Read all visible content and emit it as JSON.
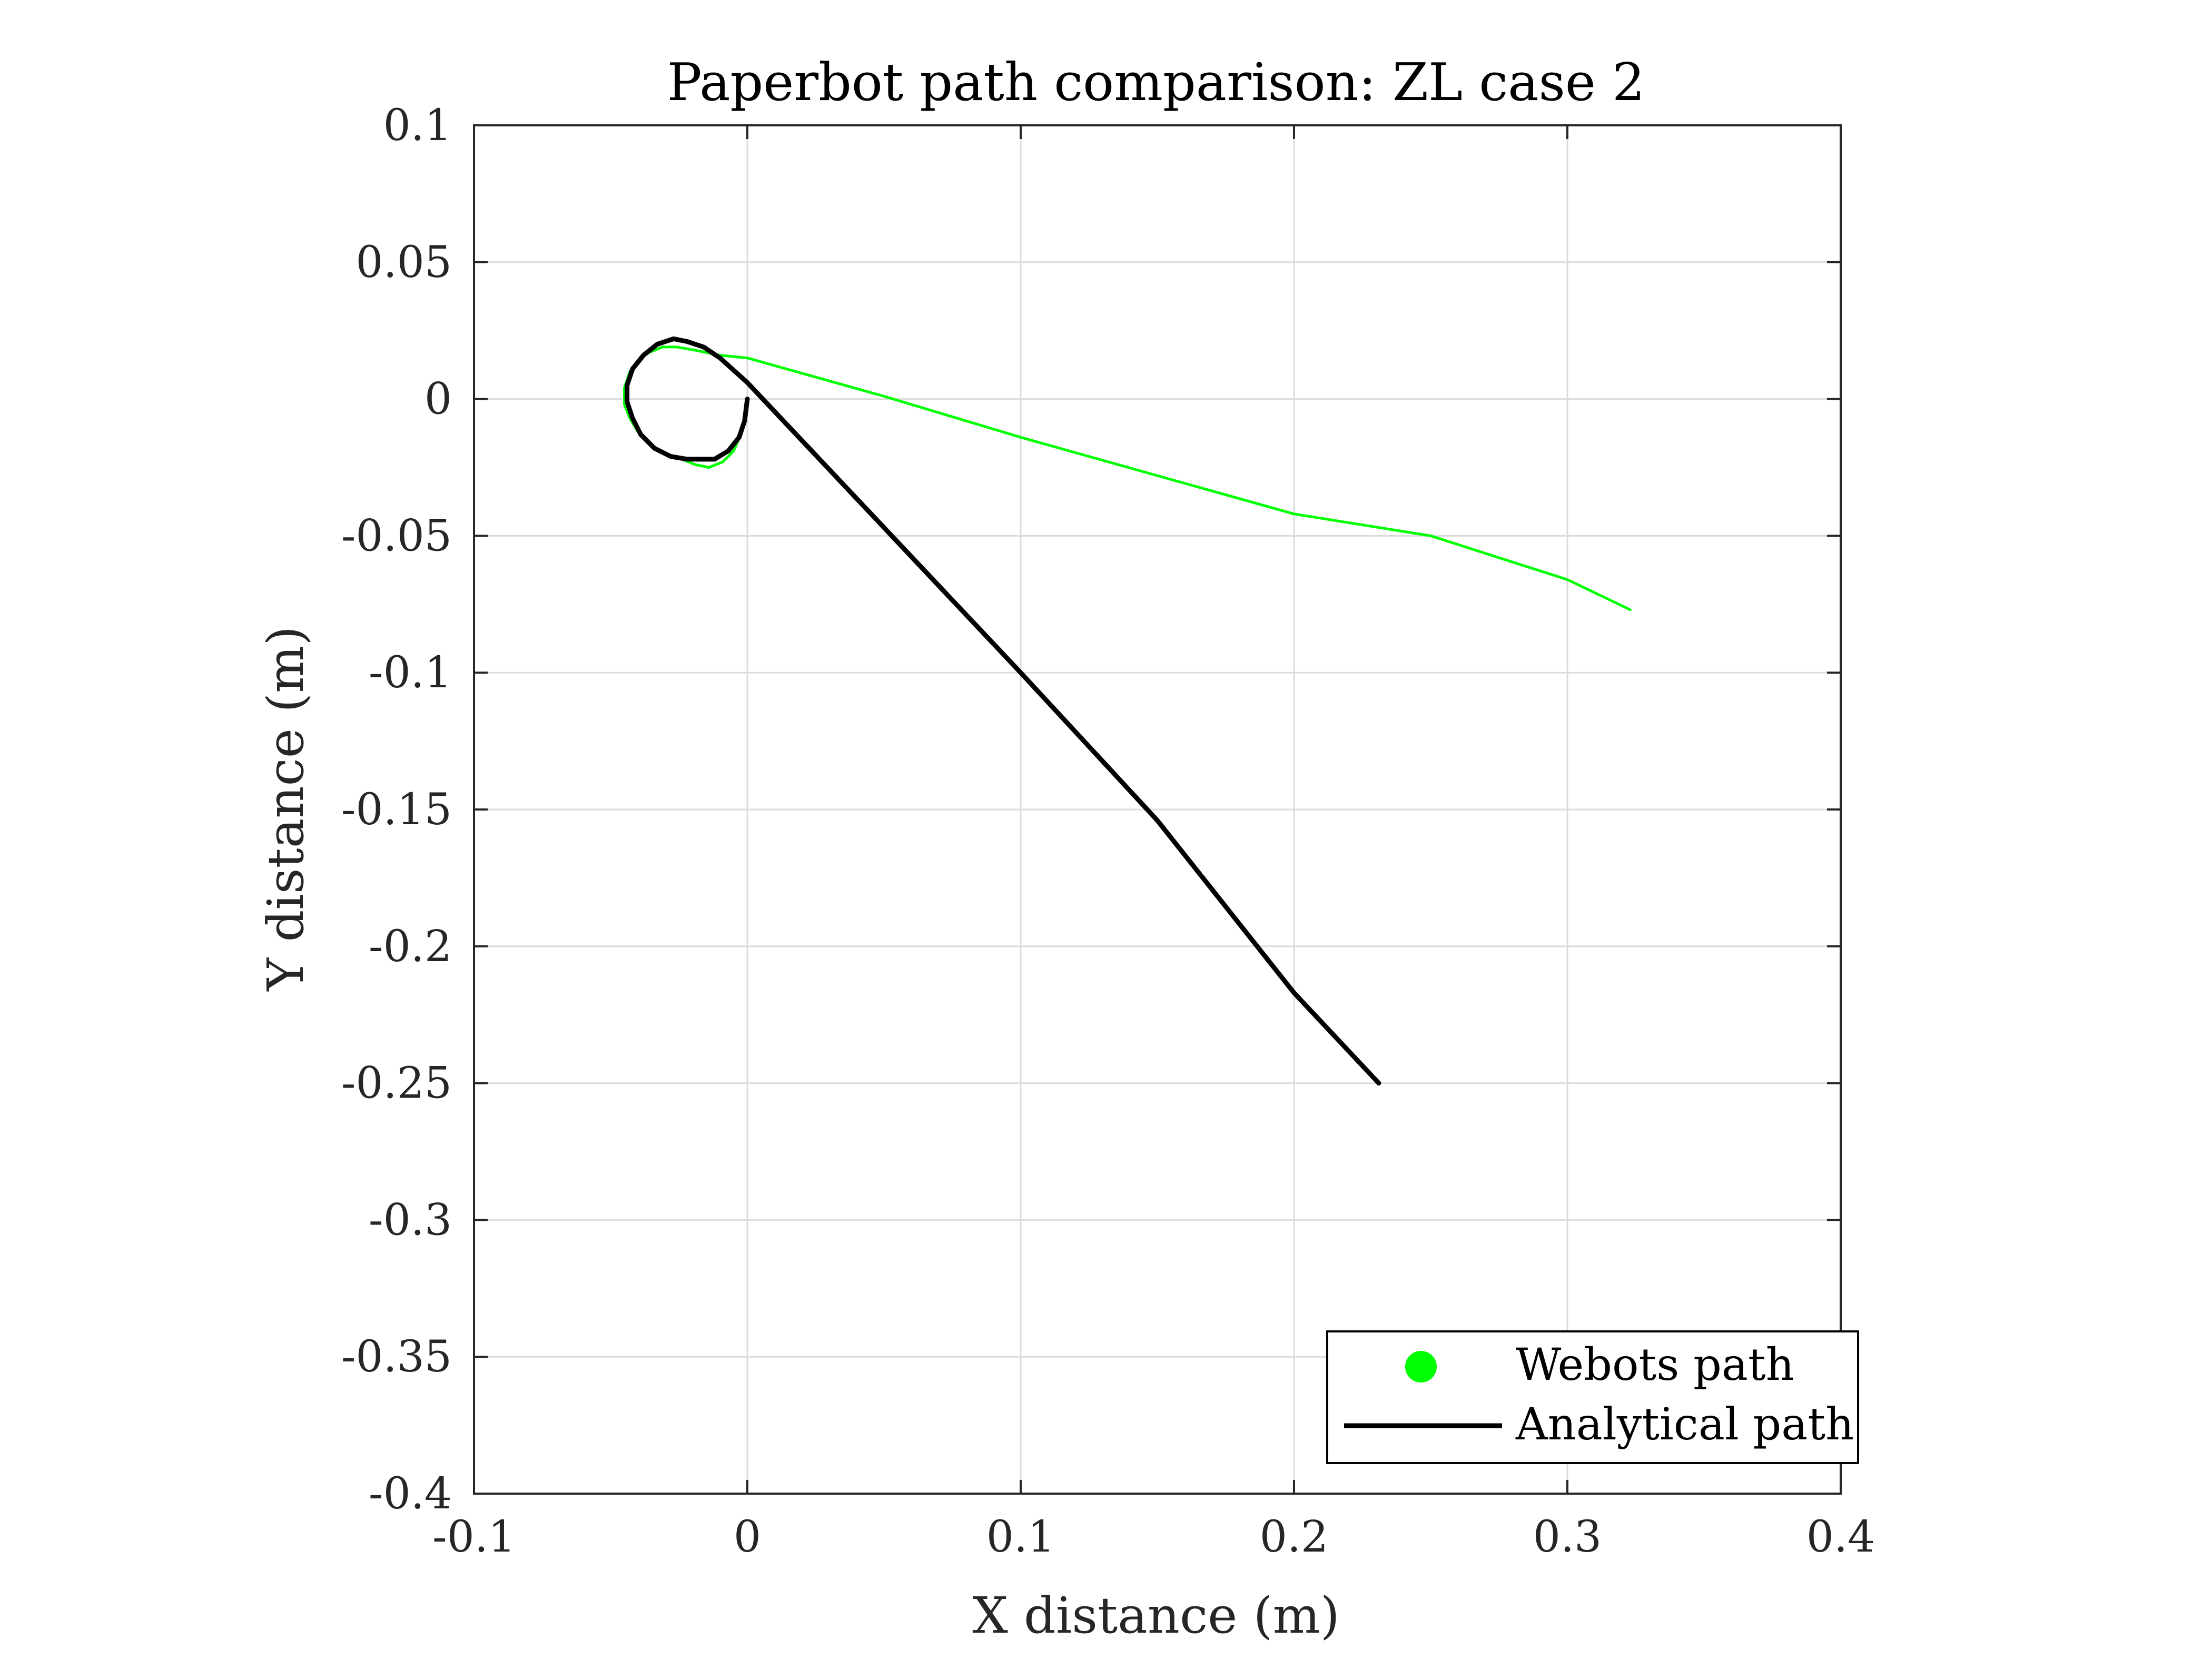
{
  "chart_data": {
    "type": "line",
    "title": "Paperbot path comparison: ZL case 2",
    "xlabel": "X distance (m)",
    "ylabel": "Y distance (m)",
    "xlim": [
      -0.1,
      0.4
    ],
    "ylim": [
      -0.4,
      0.1
    ],
    "xticks": [
      -0.1,
      0,
      0.1,
      0.2,
      0.3,
      0.4
    ],
    "xtick_labels": [
      "-0.1",
      "0",
      "0.1",
      "0.2",
      "0.3",
      "0.4"
    ],
    "yticks": [
      0.1,
      0.05,
      0,
      -0.05,
      -0.1,
      -0.15,
      -0.2,
      -0.25,
      -0.3,
      -0.35,
      -0.4
    ],
    "ytick_labels": [
      "0.1",
      "0.05",
      "0",
      "-0.05",
      "-0.1",
      "-0.15",
      "-0.2",
      "-0.25",
      "-0.3",
      "-0.35",
      "-0.4"
    ],
    "grid": true,
    "legend_position": "bottom-right",
    "series": [
      {
        "name": "Webots path",
        "color": "#00ff00",
        "marker": "circle",
        "x": [
          0.0,
          -0.002,
          -0.005,
          -0.009,
          -0.014,
          -0.019,
          -0.024,
          -0.03,
          -0.035,
          -0.04,
          -0.043,
          -0.045,
          -0.045,
          -0.043,
          -0.04,
          -0.036,
          -0.031,
          -0.026,
          -0.02,
          -0.01,
          0.0,
          0.05,
          0.1,
          0.15,
          0.2,
          0.25,
          0.3,
          0.323
        ],
        "y": [
          -0.004,
          -0.012,
          -0.019,
          -0.023,
          -0.025,
          -0.024,
          -0.022,
          -0.02,
          -0.017,
          -0.012,
          -0.007,
          -0.002,
          0.004,
          0.01,
          0.014,
          0.017,
          0.019,
          0.019,
          0.018,
          0.016,
          0.015,
          0.001,
          -0.014,
          -0.028,
          -0.042,
          -0.05,
          -0.066,
          -0.077
        ]
      },
      {
        "name": "Analytical path",
        "color": "#000000",
        "marker": "line",
        "x": [
          0.0,
          -0.001,
          -0.003,
          -0.007,
          -0.012,
          -0.017,
          -0.022,
          -0.028,
          -0.034,
          -0.039,
          -0.042,
          -0.044,
          -0.044,
          -0.042,
          -0.038,
          -0.033,
          -0.027,
          -0.022,
          -0.016,
          -0.01,
          0.0,
          0.05,
          0.1,
          0.15,
          0.2,
          0.231
        ],
        "y": [
          0.0,
          -0.008,
          -0.014,
          -0.019,
          -0.022,
          -0.022,
          -0.022,
          -0.021,
          -0.018,
          -0.013,
          -0.007,
          -0.001,
          0.005,
          0.011,
          0.016,
          0.02,
          0.022,
          0.021,
          0.019,
          0.015,
          0.006,
          -0.047,
          -0.1,
          -0.154,
          -0.217,
          -0.25
        ]
      }
    ]
  }
}
